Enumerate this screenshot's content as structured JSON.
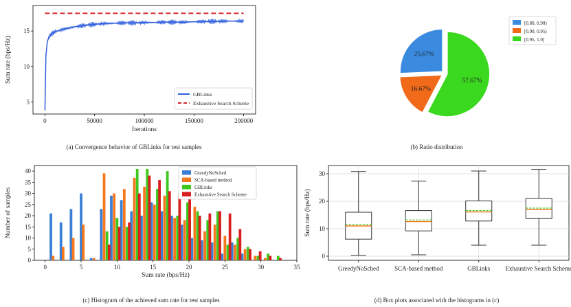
{
  "colors": {
    "blue": "#2f5fdc",
    "red": "#d62728",
    "pie_blue": "#3a8be0",
    "pie_orange": "#f06a1a",
    "pie_green": "#3ad81e",
    "hist_blue": "#3a7fd5",
    "hist_orange": "#f5781e",
    "hist_green": "#3ec81e",
    "hist_red": "#d81e1e",
    "box_median": "#f5781e",
    "box_mean": "#3ec81e"
  },
  "captions": {
    "a": "(a) Convergence behavior of GBLinks for test samples",
    "b": "(b) Ratio distribution",
    "c": "(c) Histogram of the achieved sum rate for test samples",
    "d": "(d) Box plots associated with the histograms in (c)"
  },
  "chart_data": [
    {
      "id": "a",
      "type": "line",
      "title": "",
      "xlabel": "Iterations",
      "ylabel": "Sum rate (bps/Hz)",
      "xlim": [
        -12000,
        212000
      ],
      "ylim": [
        3.3,
        18.6
      ],
      "xticks": [
        0,
        50000,
        100000,
        150000,
        200000
      ],
      "yticks": [
        5,
        10,
        15
      ],
      "series": [
        {
          "name": "GBLinks",
          "style": "solid",
          "x": [
            0,
            1000,
            2500,
            5000,
            10000,
            20000,
            30000,
            40000,
            50000,
            60000,
            70000,
            80000,
            90000,
            100000,
            110000,
            120000,
            130000,
            140000,
            150000,
            160000,
            170000,
            180000,
            190000,
            200000
          ],
          "y": [
            3.8,
            11.5,
            13.6,
            14.4,
            14.9,
            15.3,
            15.6,
            15.8,
            15.95,
            16.05,
            16.1,
            16.15,
            16.15,
            16.2,
            16.2,
            16.25,
            16.25,
            16.25,
            16.3,
            16.35,
            16.35,
            16.4,
            16.4,
            16.4
          ]
        },
        {
          "name": "Exhaustive Search Scheme",
          "style": "dashed",
          "x": [
            0,
            200000
          ],
          "y": [
            17.5,
            17.5
          ]
        }
      ],
      "legend": "lower-right"
    },
    {
      "id": "b",
      "type": "pie",
      "title": "",
      "labels": [
        "[0.80, 0.90)",
        "[0.90, 0.95)",
        "[0.95, 1.0]"
      ],
      "values": [
        25.67,
        16.67,
        57.67
      ],
      "value_labels": [
        "25.67%",
        "16.67%",
        "57.67%"
      ],
      "legend": "top-right"
    },
    {
      "id": "c",
      "type": "bar",
      "title": "",
      "xlabel": "Sum rate (bps/Hz)",
      "ylabel": "Number of samples",
      "xlim": [
        -1.5,
        35
      ],
      "ylim": [
        0,
        42.5
      ],
      "xticks": [
        0,
        5,
        10,
        15,
        20,
        25,
        30,
        35
      ],
      "yticks": [
        0,
        5,
        10,
        15,
        20,
        25,
        30,
        35,
        40
      ],
      "bin_width": 1.1,
      "series": [
        {
          "name": "GreedyNoSched",
          "x": [
            0.8,
            2.2,
            3.6,
            5.0,
            6.4,
            7.8,
            9.2,
            10.6,
            12.0,
            13.4,
            14.8,
            16.2,
            17.6,
            19.0,
            20.4,
            21.8,
            23.2,
            24.6,
            26.0,
            27.4
          ],
          "values": [
            21,
            17,
            23,
            30,
            1,
            23,
            29,
            27,
            22,
            20,
            26,
            22,
            20,
            16,
            10,
            9,
            8,
            3,
            8,
            3
          ]
        },
        {
          "name": "SCA-based method",
          "x": [
            1.1,
            2.5,
            3.9,
            5.3,
            6.8,
            8.2,
            9.6,
            11.0,
            12.4,
            13.8,
            15.2,
            16.6,
            18.0,
            19.4,
            20.8,
            22.2,
            23.6,
            25.0,
            26.4,
            27.8,
            29.2,
            30.6
          ],
          "values": [
            2,
            6,
            10,
            16,
            1,
            39,
            30,
            32,
            37,
            33,
            25,
            29,
            19,
            18,
            24,
            13,
            16,
            11,
            7,
            5,
            2,
            1
          ]
        },
        {
          "name": "GBLinks",
          "x": [
            8.6,
            10.0,
            11.4,
            12.8,
            14.2,
            15.6,
            17.0,
            18.4,
            19.8,
            21.2,
            22.6,
            24.0,
            25.4,
            26.8,
            28.2,
            29.6,
            31.0,
            32.4
          ],
          "values": [
            13,
            19,
            15,
            41,
            41,
            32,
            40,
            20,
            26,
            22,
            18,
            22,
            7,
            10,
            6,
            2,
            3,
            2
          ]
        },
        {
          "name": "Exhaustive Search Scheme",
          "x": [
            8.9,
            10.3,
            11.7,
            13.1,
            14.5,
            15.9,
            17.3,
            18.7,
            20.1,
            21.5,
            22.9,
            24.3,
            25.7,
            27.1,
            28.5,
            29.9,
            31.3,
            32.7
          ],
          "values": [
            7,
            15,
            17,
            30,
            38,
            36,
            31,
            30,
            34,
            20,
            21,
            22,
            21,
            14,
            5,
            4,
            2,
            1
          ]
        }
      ],
      "legend": "top-right"
    },
    {
      "id": "d",
      "type": "box",
      "title": "",
      "xlabel": "",
      "ylabel": "Sum rate (bps/Hz)",
      "ylim": [
        -1.5,
        33
      ],
      "yticks": [
        0,
        10,
        20,
        30
      ],
      "categories": [
        "GreedyNoSched",
        "SCA-based method",
        "GBLinks",
        "Exhaustive Search Scheme"
      ],
      "boxes": [
        {
          "min": 0.3,
          "q1": 6.2,
          "median": 11.0,
          "mean": 11.5,
          "q3": 16.0,
          "max": 30.8
        },
        {
          "min": 0.5,
          "q1": 9.2,
          "median": 12.6,
          "mean": 13.2,
          "q3": 16.6,
          "max": 27.3
        },
        {
          "min": 4.0,
          "q1": 12.8,
          "median": 16.1,
          "mean": 16.6,
          "q3": 20.1,
          "max": 31.0
        },
        {
          "min": 4.0,
          "q1": 13.7,
          "median": 17.0,
          "mean": 17.5,
          "q3": 21.0,
          "max": 31.6
        }
      ]
    }
  ]
}
